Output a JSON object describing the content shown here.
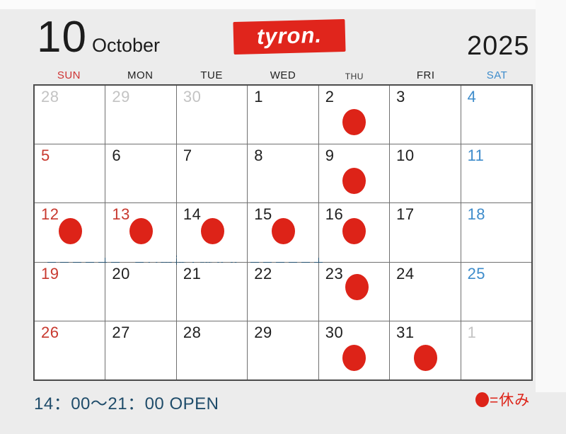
{
  "header": {
    "month_number": "10",
    "month_name": "October",
    "year": "2025",
    "logo_text": "tyron."
  },
  "weekdays": [
    {
      "label": "SUN",
      "color": "#ce3333"
    },
    {
      "label": "MON",
      "color": "#222222"
    },
    {
      "label": "TUE",
      "color": "#222222"
    },
    {
      "label": "WED",
      "color": "#222222"
    },
    {
      "label": "THU",
      "color": "#333333",
      "small": true
    },
    {
      "label": "FRI",
      "color": "#222222"
    },
    {
      "label": "SAT",
      "color": "#3e8ccb"
    }
  ],
  "calendar": {
    "weeks": [
      [
        {
          "day": "28",
          "type": "adjacent"
        },
        {
          "day": "29",
          "type": "adjacent"
        },
        {
          "day": "30",
          "type": "adjacent"
        },
        {
          "day": "1",
          "type": "normal"
        },
        {
          "day": "2",
          "type": "normal",
          "dot": "below"
        },
        {
          "day": "3",
          "type": "normal"
        },
        {
          "day": "4",
          "type": "saturday"
        }
      ],
      [
        {
          "day": "5",
          "type": "sunday"
        },
        {
          "day": "6",
          "type": "normal"
        },
        {
          "day": "7",
          "type": "normal"
        },
        {
          "day": "8",
          "type": "normal"
        },
        {
          "day": "9",
          "type": "normal",
          "dot": "below"
        },
        {
          "day": "10",
          "type": "normal"
        },
        {
          "day": "11",
          "type": "saturday"
        }
      ],
      [
        {
          "day": "12",
          "type": "sunday",
          "dot": "mid"
        },
        {
          "day": "13",
          "type": "holiday",
          "dot": "mid"
        },
        {
          "day": "14",
          "type": "normal",
          "dot": "mid"
        },
        {
          "day": "15",
          "type": "normal",
          "dot": "mid"
        },
        {
          "day": "16",
          "type": "normal",
          "dot": "mid"
        },
        {
          "day": "17",
          "type": "normal"
        },
        {
          "day": "18",
          "type": "saturday"
        }
      ],
      [
        {
          "day": "19",
          "type": "sunday"
        },
        {
          "day": "20",
          "type": "normal"
        },
        {
          "day": "21",
          "type": "normal"
        },
        {
          "day": "22",
          "type": "normal"
        },
        {
          "day": "23",
          "type": "normal",
          "dot": "right"
        },
        {
          "day": "24",
          "type": "normal"
        },
        {
          "day": "25",
          "type": "saturday"
        }
      ],
      [
        {
          "day": "26",
          "type": "sunday"
        },
        {
          "day": "27",
          "type": "normal"
        },
        {
          "day": "28",
          "type": "normal"
        },
        {
          "day": "29",
          "type": "normal"
        },
        {
          "day": "30",
          "type": "normal",
          "dot": "below"
        },
        {
          "day": "31",
          "type": "normal",
          "dot": "below"
        },
        {
          "day": "1",
          "type": "adjacent"
        }
      ]
    ],
    "event": {
      "label": "全日本選手権大会",
      "start_day": "12",
      "end_day": "15"
    }
  },
  "footer": {
    "hours_text": "14：00〜21：00 OPEN",
    "legend_symbol": "●",
    "legend_text": "=休み"
  },
  "colors": {
    "page_bg": "#ececec",
    "cell_bg": "#ffffff",
    "accent_red": "#e0251c",
    "dot_red": "#dd2318",
    "red_text": "#c8382e",
    "saturday_blue": "#3e8ccb",
    "adjacent_gray": "#c3c3c3",
    "text_dark": "#1f1f1f",
    "navy": "#1f4c6a",
    "grid_line": "#707070",
    "grid_border": "#4c4c4c"
  }
}
